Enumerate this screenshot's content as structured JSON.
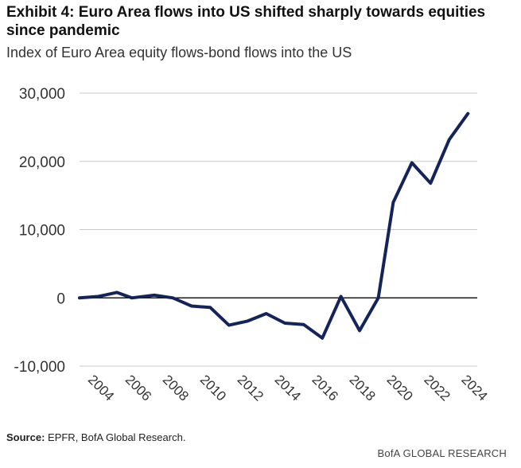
{
  "header": {
    "title": "Exhibit 4: Euro Area flows into US shifted sharply towards equities since pandemic",
    "subtitle": "Index of Euro Area equity flows-bond flows into the US"
  },
  "footer": {
    "source_label": "Source:",
    "source_text": " EPFR, BofA Global Research.",
    "brand": "BofA GLOBAL RESEARCH"
  },
  "colors": {
    "line": "#14245a",
    "zero_line": "#1a1a1a",
    "grid": "#c8c8c8"
  },
  "chart_data": {
    "type": "line",
    "title": "Exhibit 4: Euro Area flows into US shifted sharply towards equities since pandemic",
    "subtitle": "Index of Euro Area equity flows-bond flows into the US",
    "xlabel": "",
    "ylabel": "",
    "xlim": [
      2003.5,
      2024.8
    ],
    "ylim": [
      -10000,
      30000
    ],
    "grid": true,
    "y_ticks": [
      30000,
      20000,
      10000,
      0,
      -10000
    ],
    "y_tick_labels": [
      "30,000",
      "20,000",
      "10,000",
      "0",
      "-10,000"
    ],
    "x_ticks": [
      2004,
      2006,
      2008,
      2010,
      2012,
      2014,
      2016,
      2018,
      2020,
      2022,
      2024
    ],
    "x_tick_labels": [
      "2004",
      "2006",
      "2008",
      "2010",
      "2012",
      "2014",
      "2016",
      "2018",
      "2020",
      "2022",
      "2024"
    ],
    "series": [
      {
        "name": "Equity flows - bond flows index",
        "x": [
          2003.5,
          2004.5,
          2005.5,
          2006.3,
          2007.5,
          2008.5,
          2009.5,
          2010.5,
          2011.5,
          2012.5,
          2013.5,
          2014.5,
          2015.5,
          2016.5,
          2017.5,
          2018.5,
          2019.5,
          2020.3,
          2021.3,
          2022.3,
          2023.3,
          2024.3
        ],
        "values": [
          0,
          200,
          800,
          0,
          400,
          0,
          -1200,
          -1400,
          -4000,
          -3400,
          -2300,
          -3700,
          -3900,
          -5900,
          200,
          -4800,
          0,
          14000,
          19800,
          16800,
          23200,
          27000
        ]
      }
    ]
  }
}
